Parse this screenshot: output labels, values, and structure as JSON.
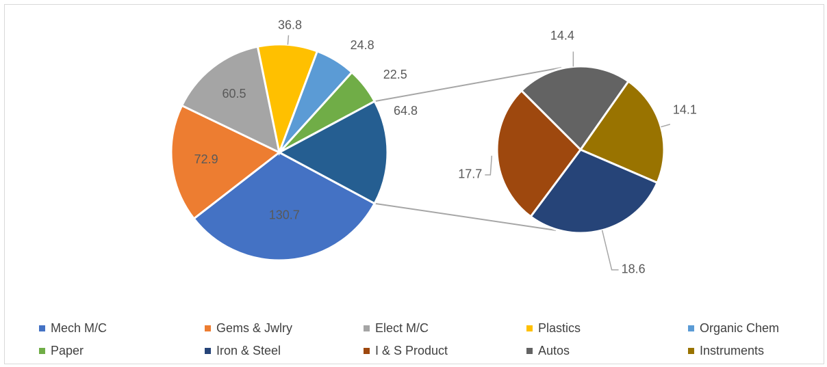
{
  "chart_data": {
    "type": "pie",
    "subtype": "pie-of-pie",
    "title": "",
    "main_pie": {
      "slices": [
        {
          "name": "Mech M/C",
          "value": 130.7,
          "color": "#4472C4"
        },
        {
          "name": "Gems & Jwlry",
          "value": 72.9,
          "color": "#ED7D31"
        },
        {
          "name": "Elect M/C",
          "value": 60.5,
          "color": "#A5A5A5"
        },
        {
          "name": "Plastics",
          "value": 36.8,
          "color": "#FFC000"
        },
        {
          "name": "Organic Chem",
          "value": 24.8,
          "color": "#5B9BD5"
        },
        {
          "name": "Paper",
          "value": 22.5,
          "color": "#70AD47"
        }
      ],
      "other_value": 64.8,
      "other_color": "#255E91"
    },
    "secondary_pie": {
      "slices": [
        {
          "name": "Autos",
          "value": 14.4,
          "color": "#636363"
        },
        {
          "name": "Instruments",
          "value": 14.1,
          "color": "#997300"
        },
        {
          "name": "Iron & Steel",
          "value": 18.6,
          "color": "#264478"
        },
        {
          "name": "I & S Product",
          "value": 17.7,
          "color": "#9E480E"
        }
      ]
    },
    "legend": [
      {
        "name": "Mech M/C",
        "color": "#4472C4"
      },
      {
        "name": "Gems & Jwlry",
        "color": "#ED7D31"
      },
      {
        "name": "Elect M/C",
        "color": "#A5A5A5"
      },
      {
        "name": "Plastics",
        "color": "#FFC000"
      },
      {
        "name": "Organic Chem",
        "color": "#5B9BD5"
      },
      {
        "name": "Paper",
        "color": "#70AD47"
      },
      {
        "name": "Iron & Steel",
        "color": "#264478"
      },
      {
        "name": "I & S Product",
        "color": "#9E480E"
      },
      {
        "name": "Autos",
        "color": "#636363"
      },
      {
        "name": "Instruments",
        "color": "#997300"
      }
    ],
    "legend_position": "bottom"
  }
}
